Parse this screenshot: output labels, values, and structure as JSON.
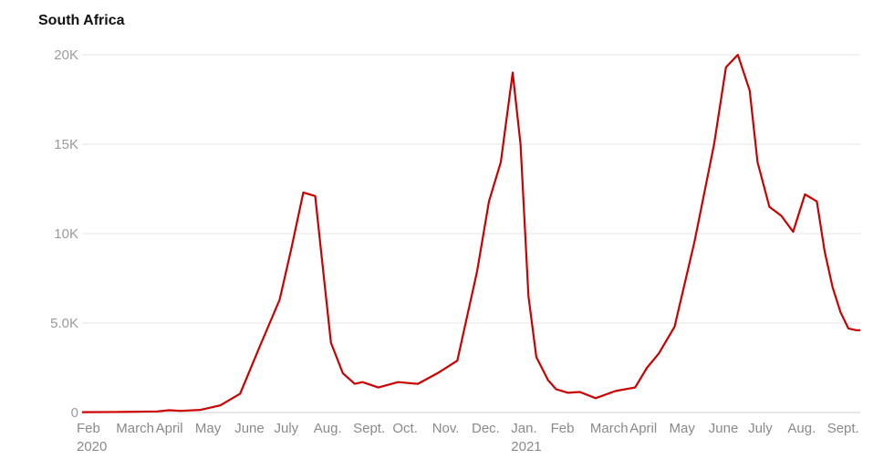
{
  "chart_data": {
    "type": "line",
    "title_clipped": "",
    "subtitle": "South Africa",
    "y_ticks": [
      {
        "value": 0,
        "label": "0"
      },
      {
        "value": 5000,
        "label": "5.0K"
      },
      {
        "value": 10000,
        "label": "10K"
      },
      {
        "value": 15000,
        "label": "15K"
      },
      {
        "value": 20000,
        "label": "20K"
      }
    ],
    "ylim": [
      0,
      20000
    ],
    "x_ticks": [
      {
        "month": 0,
        "label": "Feb",
        "year": "2020"
      },
      {
        "month": 1,
        "label": "March"
      },
      {
        "month": 2,
        "label": "April"
      },
      {
        "month": 3,
        "label": "May"
      },
      {
        "month": 4,
        "label": "June"
      },
      {
        "month": 5,
        "label": "July"
      },
      {
        "month": 6,
        "label": "Aug."
      },
      {
        "month": 7,
        "label": "Sept."
      },
      {
        "month": 8,
        "label": "Oct."
      },
      {
        "month": 9,
        "label": "Nov."
      },
      {
        "month": 10,
        "label": "Dec."
      },
      {
        "month": 11,
        "label": "Jan.",
        "year": "2021"
      },
      {
        "month": 12,
        "label": "Feb"
      },
      {
        "month": 13,
        "label": "March"
      },
      {
        "month": 14,
        "label": "April"
      },
      {
        "month": 15,
        "label": "May"
      },
      {
        "month": 16,
        "label": "June"
      },
      {
        "month": 17,
        "label": "July"
      },
      {
        "month": 18,
        "label": "Aug."
      },
      {
        "month": 19,
        "label": "Sept."
      }
    ],
    "grid": true,
    "line_color": "#cc0000",
    "series": [
      {
        "x_months": [
          0,
          1.0,
          1.9,
          2.2,
          2.5,
          3.0,
          3.5,
          4.0,
          4.5,
          5.0,
          5.3,
          5.6,
          5.9,
          6.1,
          6.3,
          6.6,
          6.9,
          7.1,
          7.5,
          8.0,
          8.5,
          9.0,
          9.5,
          10.0,
          10.3,
          10.6,
          10.9,
          11.1,
          11.3,
          11.5,
          11.8,
          12.0,
          12.3,
          12.6,
          13.0,
          13.5,
          14.0,
          14.3,
          14.6,
          15.0,
          15.5,
          16.0,
          16.3,
          16.6,
          16.9,
          17.1,
          17.4,
          17.7,
          18.0,
          18.3,
          18.6,
          18.8,
          19.0,
          19.2,
          19.4,
          19.6,
          19.7
        ],
        "values": [
          20,
          30,
          60,
          130,
          90,
          150,
          400,
          1050,
          3700,
          6300,
          9200,
          12300,
          12100,
          8000,
          3900,
          2200,
          1600,
          1700,
          1400,
          1700,
          1600,
          2200,
          2900,
          7900,
          11800,
          14000,
          19000,
          15000,
          6500,
          3100,
          1800,
          1300,
          1100,
          1150,
          800,
          1200,
          1400,
          2500,
          3300,
          4800,
          9500,
          15000,
          19300,
          20000,
          18000,
          14000,
          11500,
          11000,
          10100,
          12200,
          11800,
          9000,
          7000,
          5600,
          4700,
          4600,
          4600
        ]
      }
    ]
  }
}
